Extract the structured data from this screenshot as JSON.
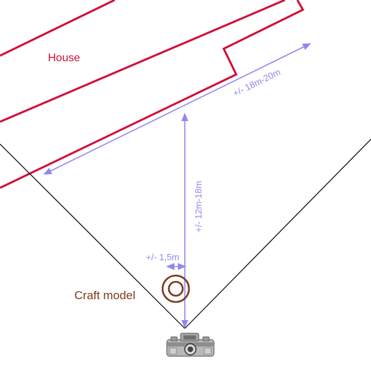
{
  "labels": {
    "house": "House",
    "craft_model": "Craft model",
    "distance_long": "+/- 18m-20m",
    "distance_perpendicular": "+/- 12m-18m",
    "offset": "+/- 1,5m"
  },
  "icons": {
    "camera": "camera-icon",
    "model": "concentric-circles-icon"
  },
  "colors": {
    "house_outline": "#d0103a",
    "dimension_arrows": "#8f88f0",
    "field_of_view": "#000000",
    "craft_model": "#7b3a1c"
  }
}
